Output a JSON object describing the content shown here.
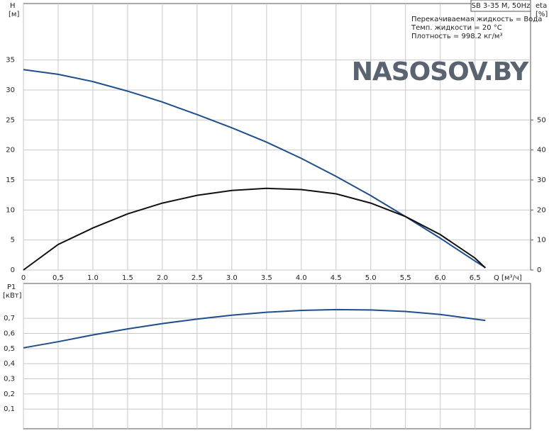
{
  "chart_data": [
    {
      "type": "line",
      "title": "SB 3-35 M, 50Hz",
      "annotations": [
        "Перекачиваемая жидкость = Вода",
        "Темп. жидкости = 20 °C",
        "Плотность = 998.2 кг/м³"
      ],
      "logo": "NASOSOV.BY",
      "y_label": "H",
      "y_unit": "[м]",
      "y2_label": "eta",
      "y2_unit": "[%]",
      "x_label": "Q [м³/ч]",
      "x": [
        0,
        0.5,
        1.0,
        1.5,
        2.0,
        2.5,
        3.0,
        3.5,
        4.0,
        4.5,
        5.0,
        5.5,
        6.0,
        6.5,
        6.65
      ],
      "series": [
        {
          "name": "H",
          "color": "#1f4e8c",
          "values": [
            33.4,
            32.6,
            31.4,
            29.8,
            28.0,
            25.9,
            23.7,
            21.3,
            18.6,
            15.6,
            12.4,
            8.9,
            5.3,
            1.5,
            0.4
          ]
        },
        {
          "name": "eta",
          "color": "#111111",
          "axis": "y2",
          "values": [
            0,
            8.5,
            14.0,
            18.7,
            22.3,
            24.9,
            26.5,
            27.2,
            26.8,
            25.4,
            22.3,
            17.8,
            11.8,
            4.0,
            0.7
          ]
        }
      ],
      "xlim": [
        0,
        7.3
      ],
      "xticks": [
        0,
        {
          "value": 0.5,
          "label": "0,5"
        },
        {
          "value": 1.0,
          "label": "1.0"
        },
        {
          "value": 1.5,
          "label": "1.5"
        },
        {
          "value": 2.0,
          "label": "2.0"
        },
        {
          "value": 2.5,
          "label": "2.5"
        },
        {
          "value": 3.0,
          "label": "3.0"
        },
        {
          "value": 3.5,
          "label": "3.5"
        },
        {
          "value": 4.0,
          "label": "4.0"
        },
        {
          "value": 4.5,
          "label": "4.5"
        },
        {
          "value": 5.0,
          "label": "5.0"
        },
        {
          "value": 5.5,
          "label": "5,5"
        },
        {
          "value": 6.0,
          "label": "6,0"
        },
        {
          "value": 6.5,
          "label": "6,5"
        }
      ],
      "ylim": [
        0,
        44.4
      ],
      "yticks": [
        0,
        5,
        10,
        15,
        20,
        25,
        30,
        35
      ],
      "y2lim": [
        0,
        88.8
      ],
      "y2ticks": [
        0,
        10,
        20,
        30,
        40,
        50
      ],
      "grid": true
    },
    {
      "type": "line",
      "y_label": "P1",
      "y_unit": "[кВт]",
      "x": [
        0,
        0.5,
        1.0,
        1.5,
        2.0,
        2.5,
        3.0,
        3.5,
        4.0,
        4.5,
        5.0,
        5.5,
        6.0,
        6.5,
        6.65
      ],
      "series": [
        {
          "name": "P1",
          "color": "#1f4e8c",
          "values": [
            0.505,
            0.545,
            0.59,
            0.63,
            0.665,
            0.695,
            0.72,
            0.74,
            0.752,
            0.757,
            0.755,
            0.745,
            0.725,
            0.695,
            0.685
          ]
        }
      ],
      "xlim": [
        0,
        7.3
      ],
      "ylim": [
        -0.03,
        0.93
      ],
      "yticks": [
        {
          "value": 0.1,
          "label": "0,1"
        },
        {
          "value": 0.2,
          "label": "0,2"
        },
        {
          "value": 0.3,
          "label": "0,3"
        },
        {
          "value": 0.4,
          "label": "0,4"
        },
        {
          "value": 0.5,
          "label": "0,5"
        },
        {
          "value": 0.6,
          "label": "0,6"
        },
        {
          "value": 0.7,
          "label": "0,7"
        }
      ],
      "grid": true
    }
  ]
}
